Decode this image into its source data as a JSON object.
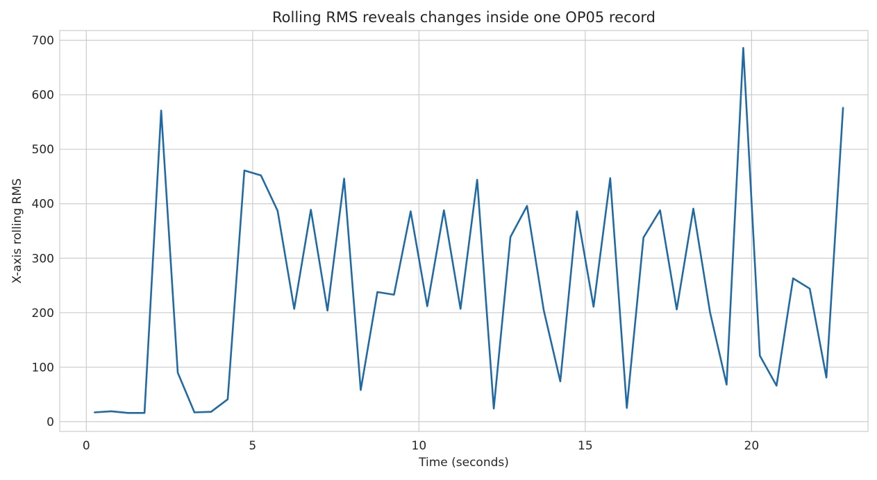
{
  "chart_data": {
    "type": "line",
    "title": "Rolling RMS reveals changes inside one OP05 record",
    "xlabel": "Time (seconds)",
    "ylabel": "X-axis rolling RMS",
    "xlim": [
      -0.8,
      23.5
    ],
    "ylim": [
      -18,
      718
    ],
    "xticks": [
      0,
      5,
      10,
      15,
      20
    ],
    "yticks": [
      0,
      100,
      200,
      300,
      400,
      500,
      600,
      700
    ],
    "grid": true,
    "line_color": "#1f6aa5",
    "series": [
      {
        "x": [
          0.25,
          0.75,
          1.25,
          1.75,
          2.25,
          2.75,
          3.25,
          3.75,
          4.25,
          4.75,
          5.25,
          5.75,
          6.25,
          6.75,
          7.25,
          7.75,
          8.25,
          8.75,
          9.25,
          9.75,
          10.25,
          10.75,
          11.25,
          11.75,
          12.25,
          12.75,
          13.25,
          13.75,
          14.25,
          14.75,
          15.25,
          15.75,
          16.25,
          16.75,
          17.25,
          17.75,
          18.25,
          18.75,
          19.25,
          19.75,
          20.25,
          20.75,
          21.25,
          21.75,
          22.25,
          22.75
        ],
        "y": [
          17,
          19,
          16,
          16,
          571,
          90,
          17,
          18,
          41,
          461,
          452,
          387,
          207,
          389,
          204,
          446,
          58,
          238,
          233,
          386,
          212,
          388,
          207,
          444,
          24,
          339,
          396,
          205,
          74,
          386,
          211,
          447,
          25,
          338,
          388,
          206,
          391,
          201,
          68,
          686,
          121,
          66,
          263,
          244,
          81,
          576
        ]
      }
    ]
  }
}
